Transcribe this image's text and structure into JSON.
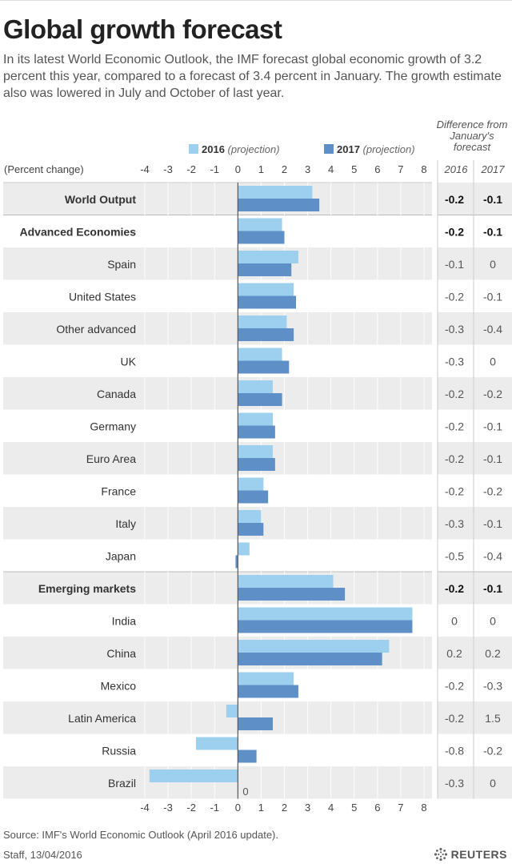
{
  "title": "Global growth forecast",
  "subtitle": "In its latest World Economic Outlook, the IMF forecast global economic growth of 3.2 percent this year, compared to a forecast of 3.4 percent in January. The growth estimate also was lowered in July and October of last year.",
  "source": "Source: IMF's World Economic Outlook (April 2016 update).",
  "credit": "Staff, 13/04/2016",
  "brand": "REUTERS",
  "colors": {
    "s2016": "#9dd0ee",
    "s2017": "#5f8fc7",
    "band": "#ececec"
  },
  "chart_data": {
    "type": "bar",
    "orientation": "horizontal",
    "ylabel": "(Percent change)",
    "xlim": [
      -4,
      8
    ],
    "xticks": [
      "-4",
      "-3",
      "-2",
      "-1",
      "0",
      "1",
      "2",
      "3",
      "4",
      "5",
      "6",
      "7",
      "8"
    ],
    "zero_label": "0",
    "legend": [
      {
        "year": "2016",
        "note": "(projection)"
      },
      {
        "year": "2017",
        "note": "(projection)"
      }
    ],
    "diff_header": [
      "Difference from",
      "January's",
      "forecast"
    ],
    "diff_years": [
      "2016",
      "2017"
    ],
    "categories": [
      "World Output",
      "Advanced Economies",
      "Spain",
      "United States",
      "Other advanced",
      "UK",
      "Canada",
      "Germany",
      "Euro Area",
      "France",
      "Italy",
      "Japan",
      "Emerging markets",
      "India",
      "China",
      "Mexico",
      "Latin America",
      "Russia",
      "Brazil"
    ],
    "bold": [
      true,
      true,
      false,
      false,
      false,
      false,
      false,
      false,
      false,
      false,
      false,
      false,
      true,
      false,
      false,
      false,
      false,
      false,
      false
    ],
    "series": [
      {
        "name": "2016",
        "values": [
          3.2,
          1.9,
          2.6,
          2.4,
          2.1,
          1.9,
          1.5,
          1.5,
          1.5,
          1.1,
          1.0,
          0.5,
          4.1,
          7.5,
          6.5,
          2.4,
          -0.5,
          -1.8,
          -3.8
        ]
      },
      {
        "name": "2017",
        "values": [
          3.5,
          2.0,
          2.3,
          2.5,
          2.4,
          2.2,
          1.9,
          1.6,
          1.6,
          1.3,
          1.1,
          -0.1,
          4.6,
          7.5,
          6.2,
          2.6,
          1.5,
          0.8,
          0.0
        ]
      }
    ],
    "diff_2016": [
      "-0.2",
      "-0.2",
      "-0.1",
      "-0.2",
      "-0.3",
      "-0.3",
      "-0.2",
      "-0.2",
      "-0.2",
      "-0.2",
      "-0.3",
      "-0.5",
      "-0.2",
      "0",
      "0.2",
      "-0.2",
      "-0.2",
      "-0.8",
      "-0.3"
    ],
    "diff_2017": [
      "-0.1",
      "-0.1",
      "0",
      "-0.1",
      "-0.4",
      "0",
      "-0.2",
      "-0.1",
      "-0.1",
      "-0.2",
      "-0.1",
      "-0.4",
      "-0.1",
      "0",
      "0.2",
      "-0.3",
      "1.5",
      "-0.2",
      "0"
    ]
  }
}
